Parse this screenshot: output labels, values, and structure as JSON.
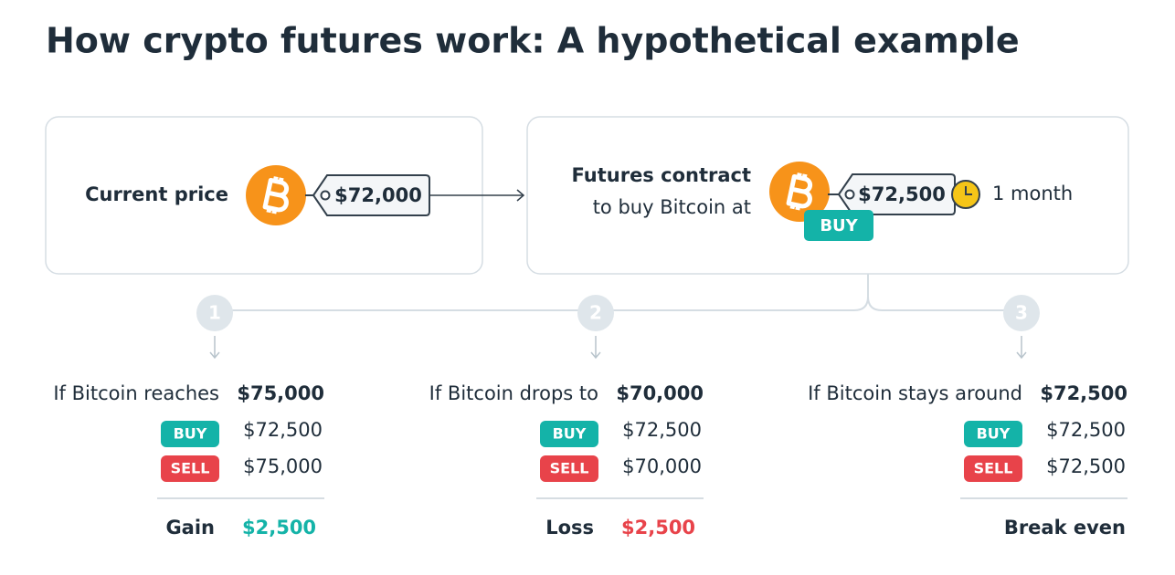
{
  "title": "How crypto futures work: A hypothetical example",
  "current": {
    "label": "Current price",
    "price": "$72,000"
  },
  "futures": {
    "label": "Futures contract",
    "sublabel": "to buy Bitcoin at",
    "price": "$72,500",
    "badge": "BUY",
    "duration": "1 month"
  },
  "scenarios": [
    {
      "number": "1",
      "condition": "If Bitcoin reaches",
      "target": "$75,000",
      "buy_label": "BUY",
      "buy_price": "$72,500",
      "sell_label": "SELL",
      "sell_price": "$75,000",
      "result_label": "Gain",
      "result_value": "$2,500"
    },
    {
      "number": "2",
      "condition": "If Bitcoin drops to",
      "target": "$70,000",
      "buy_label": "BUY",
      "buy_price": "$72,500",
      "sell_label": "SELL",
      "sell_price": "$70,000",
      "result_label": "Loss",
      "result_value": "$2,500"
    },
    {
      "number": "3",
      "condition": "If Bitcoin stays around",
      "target": "$72,500",
      "buy_label": "BUY",
      "buy_price": "$72,500",
      "sell_label": "SELL",
      "sell_price": "$72,500",
      "result_label": "Break even"
    }
  ]
}
